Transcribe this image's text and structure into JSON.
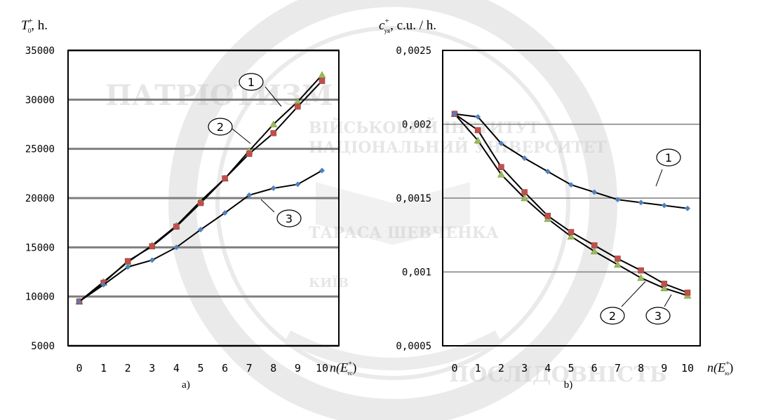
{
  "watermark": {
    "texts": [
      "ВІЙСЬКОВИЙ ІНСТИТУТ",
      "НАЦІОНАЛЬНИЙ УНІВЕРСИТЕТ",
      "ТАРАСА ШЕВЧЕНКА",
      "КИЇВ",
      "ПАТРІОТИЗМ",
      "ПОСЛІДОВНІСТЬ"
    ],
    "color": "#c8c8c8"
  },
  "colors": {
    "grid": "#7f7f7f",
    "frame": "#000000",
    "series_1": "#9bbb59",
    "series_2": "#c0504d",
    "series_3": "#4f81bd",
    "line": "#000000"
  },
  "chart_data": [
    {
      "type": "line",
      "panel_label": "a)",
      "y_title_main": "T",
      "y_title_sub": "0",
      "y_title_sup": "+",
      "y_title_rest": ", h.",
      "x_title_main": "n(E",
      "x_title_sub": "тс",
      "x_title_sup": "+",
      "x_title_rest": ")",
      "x": [
        0,
        1,
        2,
        3,
        4,
        5,
        6,
        7,
        8,
        9,
        10
      ],
      "ylim": [
        5000,
        35000
      ],
      "yticks": [
        5000,
        10000,
        15000,
        20000,
        25000,
        30000,
        35000
      ],
      "ytick_labels": [
        "5000",
        "10000",
        "15000",
        "20000",
        "25000",
        "30000",
        "35000"
      ],
      "grid": true,
      "series": [
        {
          "callout": "1",
          "values": [
            9500,
            11500,
            13500,
            15200,
            17200,
            19700,
            22000,
            24800,
            27500,
            29800,
            32500
          ]
        },
        {
          "callout": "2",
          "values": [
            9500,
            11400,
            13600,
            15100,
            17100,
            19500,
            22000,
            24500,
            26600,
            29300,
            31900
          ]
        },
        {
          "callout": "3",
          "values": [
            9500,
            11200,
            13000,
            13700,
            15000,
            16800,
            18500,
            20300,
            21000,
            21400,
            22800
          ]
        }
      ]
    },
    {
      "type": "line",
      "panel_label": "b)",
      "y_title_main": "c",
      "y_title_sub": "уя",
      "y_title_sup": "+",
      "y_title_rest": ", c.u. / h.",
      "x_title_main": "n(E",
      "x_title_sub": "ю",
      "x_title_sup": "+",
      "x_title_rest": ")",
      "x": [
        0,
        1,
        2,
        3,
        4,
        5,
        6,
        7,
        8,
        9,
        10
      ],
      "ylim": [
        0.0005,
        0.0025
      ],
      "yticks": [
        0.0005,
        0.001,
        0.0015,
        0.002,
        0.0025
      ],
      "ytick_labels": [
        "0,0005",
        "0,001",
        "0,0015",
        "0,002",
        "0,0025"
      ],
      "grid": true,
      "series": [
        {
          "callout": "1",
          "values": [
            0.00207,
            0.00189,
            0.00166,
            0.0015,
            0.00136,
            0.00124,
            0.00114,
            0.00105,
            0.00096,
            0.00089,
            0.00084
          ]
        },
        {
          "callout": "2",
          "values": [
            0.00207,
            0.00196,
            0.00171,
            0.00154,
            0.00138,
            0.00127,
            0.00118,
            0.00109,
            0.00101,
            0.00092,
            0.00086
          ]
        },
        {
          "callout": "3",
          "values": [
            0.00207,
            0.00205,
            0.00187,
            0.00177,
            0.00168,
            0.00159,
            0.00154,
            0.00149,
            0.00147,
            0.00145,
            0.00143
          ]
        }
      ]
    }
  ]
}
